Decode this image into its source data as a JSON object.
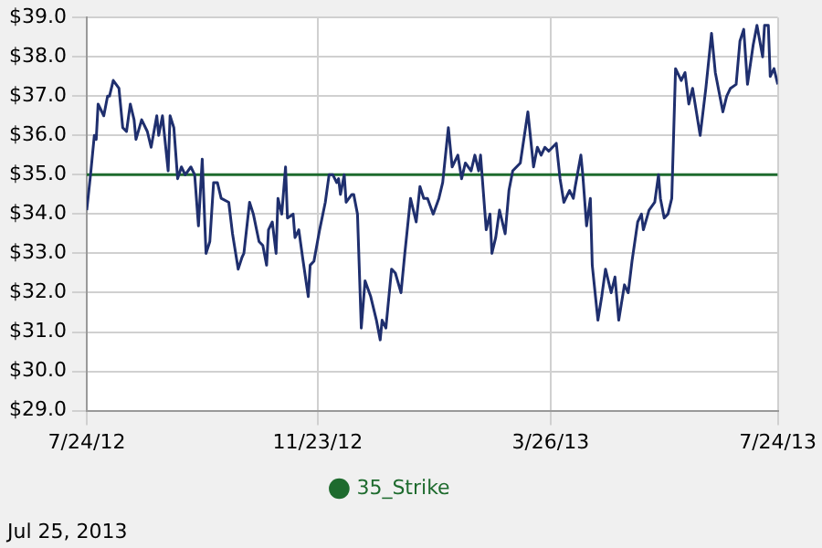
{
  "chart_data": {
    "type": "line",
    "x": [
      "2012-07-24",
      "2012-07-26",
      "2012-07-28",
      "2012-07-29",
      "2012-07-30",
      "2012-08-01",
      "2012-08-02",
      "2012-08-04",
      "2012-08-05",
      "2012-08-07",
      "2012-08-10",
      "2012-08-12",
      "2012-08-14",
      "2012-08-16",
      "2012-08-18",
      "2012-08-19",
      "2012-08-22",
      "2012-08-25",
      "2012-08-27",
      "2012-08-30",
      "2012-08-31",
      "2012-09-02",
      "2012-09-05",
      "2012-09-06",
      "2012-09-08",
      "2012-09-10",
      "2012-09-12",
      "2012-09-14",
      "2012-09-17",
      "2012-09-19",
      "2012-09-21",
      "2012-09-23",
      "2012-09-25",
      "2012-09-27",
      "2012-09-29",
      "2012-10-01",
      "2012-10-03",
      "2012-10-07",
      "2012-10-09",
      "2012-10-12",
      "2012-10-14",
      "2012-10-15",
      "2012-10-18",
      "2012-10-20",
      "2012-10-23",
      "2012-10-25",
      "2012-10-27",
      "2012-10-28",
      "2012-10-30",
      "2012-11-01",
      "2012-11-02",
      "2012-11-04",
      "2012-11-06",
      "2012-11-07",
      "2012-11-10",
      "2012-11-11",
      "2012-11-13",
      "2012-11-15",
      "2012-11-18",
      "2012-11-19",
      "2012-11-21",
      "2012-11-24",
      "2012-11-27",
      "2012-11-29",
      "2012-12-01",
      "2012-12-03",
      "2012-12-04",
      "2012-12-05",
      "2012-12-07",
      "2012-12-08",
      "2012-12-11",
      "2012-12-12",
      "2012-12-14",
      "2012-12-16",
      "2012-12-18",
      "2012-12-21",
      "2012-12-24",
      "2012-12-26",
      "2012-12-27",
      "2012-12-29",
      "2013-01-01",
      "2013-01-03",
      "2013-01-06",
      "2013-01-08",
      "2013-01-11",
      "2013-01-14",
      "2013-01-16",
      "2013-01-18",
      "2013-01-20",
      "2013-01-23",
      "2013-01-26",
      "2013-01-28",
      "2013-01-31",
      "2013-02-02",
      "2013-02-05",
      "2013-02-07",
      "2013-02-09",
      "2013-02-12",
      "2013-02-14",
      "2013-02-16",
      "2013-02-17",
      "2013-02-20",
      "2013-02-22",
      "2013-02-23",
      "2013-02-25",
      "2013-02-27",
      "2013-03-02",
      "2013-03-04",
      "2013-03-06",
      "2013-03-10",
      "2013-03-14",
      "2013-03-17",
      "2013-03-19",
      "2013-03-21",
      "2013-03-23",
      "2013-03-25",
      "2013-03-27",
      "2013-03-29",
      "2013-03-31",
      "2013-04-02",
      "2013-04-05",
      "2013-04-07",
      "2013-04-08",
      "2013-04-11",
      "2013-04-12",
      "2013-04-14",
      "2013-04-16",
      "2013-04-17",
      "2013-04-20",
      "2013-04-22",
      "2013-04-24",
      "2013-04-27",
      "2013-04-29",
      "2013-05-01",
      "2013-05-04",
      "2013-05-06",
      "2013-05-08",
      "2013-05-11",
      "2013-05-13",
      "2013-05-14",
      "2013-05-17",
      "2013-05-20",
      "2013-05-22",
      "2013-05-23",
      "2013-05-25",
      "2013-05-27",
      "2013-05-29",
      "2013-05-31",
      "2013-06-03",
      "2013-06-05",
      "2013-06-07",
      "2013-06-09",
      "2013-06-11",
      "2013-06-13",
      "2013-06-16",
      "2013-06-19",
      "2013-06-21",
      "2013-06-23",
      "2013-06-25",
      "2013-06-27",
      "2013-06-29",
      "2013-07-02",
      "2013-07-04",
      "2013-07-06",
      "2013-07-08",
      "2013-07-11",
      "2013-07-13",
      "2013-07-16",
      "2013-07-17",
      "2013-07-19",
      "2013-07-20",
      "2013-07-22",
      "2013-07-24"
    ],
    "series": [
      {
        "color": "#1f2f6e",
        "values": [
          34.1,
          35.0,
          36.0,
          35.9,
          36.8,
          36.6,
          36.5,
          37.0,
          37.0,
          37.4,
          37.2,
          36.2,
          36.1,
          36.8,
          36.4,
          35.9,
          36.4,
          36.1,
          35.7,
          36.5,
          36.0,
          36.5,
          35.1,
          36.5,
          36.2,
          34.9,
          35.2,
          35.0,
          35.2,
          35.0,
          33.7,
          35.4,
          33.0,
          33.3,
          34.8,
          34.8,
          34.4,
          34.3,
          33.5,
          32.6,
          32.9,
          33.0,
          34.3,
          34.0,
          33.3,
          33.2,
          32.7,
          33.6,
          33.8,
          33.0,
          34.4,
          34.0,
          35.2,
          33.9,
          34.0,
          33.4,
          33.6,
          32.9,
          31.9,
          32.7,
          32.8,
          33.6,
          34.3,
          35.0,
          35.0,
          34.8,
          34.9,
          34.5,
          35.0,
          34.3,
          34.5,
          34.5,
          34.0,
          31.1,
          32.3,
          31.9,
          31.3,
          30.8,
          31.3,
          31.1,
          32.6,
          32.5,
          32.0,
          33.0,
          34.4,
          33.8,
          34.7,
          34.4,
          34.4,
          34.0,
          34.4,
          34.8,
          36.2,
          35.2,
          35.5,
          34.9,
          35.3,
          35.1,
          35.5,
          35.1,
          35.5,
          33.6,
          34.0,
          33.0,
          33.4,
          34.1,
          33.5,
          34.6,
          35.1,
          35.3,
          36.6,
          35.2,
          35.7,
          35.5,
          35.7,
          35.6,
          35.7,
          35.8,
          34.9,
          34.3,
          34.6,
          34.4,
          34.7,
          35.5,
          35.0,
          33.7,
          34.4,
          32.7,
          31.3,
          31.9,
          32.6,
          32.0,
          32.4,
          31.3,
          32.2,
          32.0,
          32.8,
          33.8,
          34.0,
          33.6,
          34.1,
          34.3,
          35.0,
          34.4,
          33.9,
          34.0,
          34.4,
          37.7,
          37.4,
          37.6,
          36.8,
          37.2,
          36.6,
          36.0,
          37.2,
          38.6,
          37.6,
          37.1,
          36.6,
          37.0,
          37.2,
          37.3,
          38.4,
          38.7,
          37.3,
          38.3,
          38.8,
          38.0,
          38.8,
          38.8,
          37.5,
          37.7,
          37.3
        ]
      },
      {
        "name": "35_Strike",
        "color": "#1e6b2e",
        "x": [
          "2012-07-24",
          "2013-07-24"
        ],
        "values": [
          35,
          35
        ]
      }
    ],
    "xlim": [
      "2012-07-24",
      "2013-07-24"
    ],
    "xticks": [
      {
        "value": "2012-07-24",
        "label": "7/24/12"
      },
      {
        "value": "2012-11-23",
        "label": "11/23/12"
      },
      {
        "value": "2013-03-26",
        "label": "3/26/13"
      },
      {
        "value": "2013-07-24",
        "label": "7/24/13"
      }
    ],
    "ylim": [
      29,
      39
    ],
    "yticks": [
      {
        "value": 29,
        "label": "$29.0"
      },
      {
        "value": 30,
        "label": "$30.0"
      },
      {
        "value": 31,
        "label": "$31.0"
      },
      {
        "value": 32,
        "label": "$32.0"
      },
      {
        "value": 33,
        "label": "$33.0"
      },
      {
        "value": 34,
        "label": "$34.0"
      },
      {
        "value": 35,
        "label": "$35.0"
      },
      {
        "value": 36,
        "label": "$36.0"
      },
      {
        "value": 37,
        "label": "$37.0"
      },
      {
        "value": 38,
        "label": "$38.0"
      },
      {
        "value": 39,
        "label": "$39.0"
      }
    ],
    "grid": true,
    "legend": "bottom",
    "marker": "none",
    "line_style": "solid",
    "annotations": [
      "Jul 25, 2013"
    ]
  }
}
